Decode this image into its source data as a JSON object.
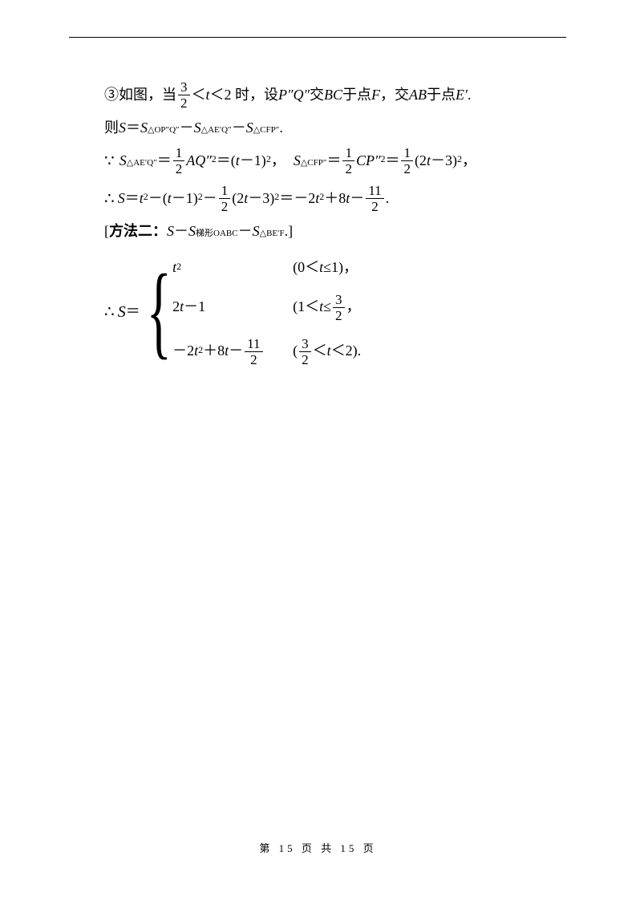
{
  "line1": {
    "prefix": "③如图，当",
    "frac_num": "3",
    "frac_den": "2",
    "lt1": "＜",
    "t": "t",
    "lt2": "＜2 时，设 ",
    "pq": "P″Q″",
    "mid": "交",
    "bc": "BC",
    "mid2": " 于点 ",
    "f": "F",
    "mid3": "，交 ",
    "ab": "AB",
    "mid4": " 于点 ",
    "e": "E′",
    "end": "."
  },
  "line2": {
    "prefix": "则 ",
    "S": "S",
    "eq": "＝",
    "S1": "S",
    "sub1": "△OP″Q″",
    "minus": "－",
    "S2": "S",
    "sub2": "△AE′Q″",
    "minus2": "－",
    "S3": "S",
    "sub3": "△CFP″",
    "end": "."
  },
  "line3": {
    "because": "∵",
    "S1": "S",
    "sub1": "△AE′Q″",
    "eq": "＝",
    "half_num": "1",
    "half_den": "2",
    "AQ": "AQ″",
    "sq": "2",
    "eq2": "＝(",
    "t": "t",
    "minus1": "－1)",
    "sq2": "2",
    "comma": "，",
    "S2": "S",
    "sub2": "△CFP″",
    "eq3": "＝",
    "half_num2": "1",
    "half_den2": "2",
    "CP": "CP″",
    "sq3": "2",
    "eq4": "＝",
    "half_num3": "1",
    "half_den3": "2",
    "paren": "(2",
    "t2": "t",
    "minus3": "－3)",
    "sq4": "2",
    "comma2": "，"
  },
  "line4": {
    "therefore": "∴",
    "S": "S",
    "eq": "＝",
    "t": "t",
    "sq": "2",
    "minus": "－(",
    "t2": "t",
    "minus1": "－1)",
    "sq2": "2",
    "minus2": "－",
    "half_num": "1",
    "half_den": "2",
    "paren": "(2",
    "t3": "t",
    "minus3": "－3)",
    "sq3": "2",
    "eq2": "＝－2",
    "t4": "t",
    "sq4": "2",
    "plus": "＋8",
    "t5": "t",
    "minus4": "－",
    "frac_num": "11",
    "frac_den": "2",
    "end": "."
  },
  "line5": {
    "open": "[",
    "label": "方法二：",
    "S": "S",
    "minus": "－",
    "S1": "S",
    "sub1": "梯形OABC",
    "minus2": "－",
    "S2": "S",
    "sub2": "△BE′F",
    "end": ".]"
  },
  "piecewise": {
    "therefore": "∴",
    "S": "S",
    "eq": "＝",
    "case1_expr_t": "t",
    "case1_expr_sq": "2",
    "case1_cond": "(0＜",
    "case1_cond_t": "t",
    "case1_cond_end": "≤1)，",
    "case2_expr": "2",
    "case2_expr_t": "t",
    "case2_expr_end": "－1",
    "case2_cond": "(1＜",
    "case2_cond_t": "t",
    "case2_cond_le": "≤",
    "case2_frac_num": "3",
    "case2_frac_den": "2",
    "case2_cond_end": "，",
    "case3_neg": "－2",
    "case3_t": "t",
    "case3_sq": "2",
    "case3_plus": "＋8",
    "case3_t2": "t",
    "case3_minus": "－",
    "case3_frac_num": "11",
    "case3_frac_den": "2",
    "case3_cond_open": "(",
    "case3_cond_num": "3",
    "case3_cond_den": "2",
    "case3_cond_lt": "＜",
    "case3_cond_t": "t",
    "case3_cond_end": "＜2)."
  },
  "footer": "第 15 页 共 15 页"
}
